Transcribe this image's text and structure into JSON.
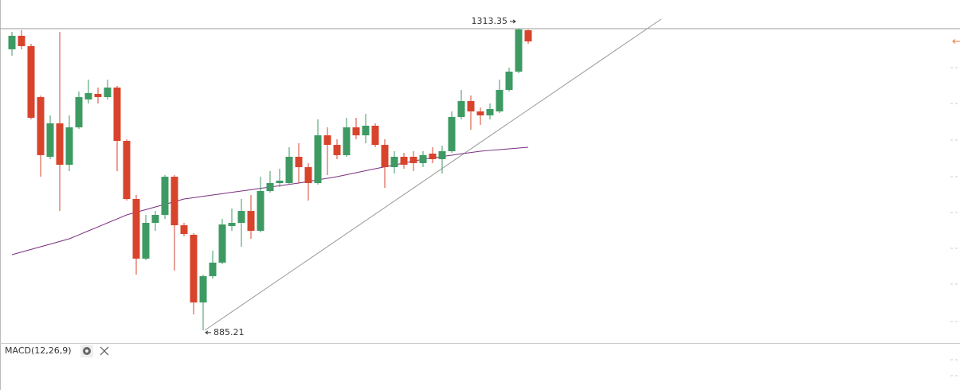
{
  "chart_data": {
    "type": "candlestick",
    "open": [
      1284.0,
      1303.2,
      1288.5,
      1216.1,
      1131.4,
      1178.9,
      1120.1,
      1173.2,
      1212.8,
      1220.7,
      1216.1,
      1229.7,
      1154.0,
      1071.5,
      986.8,
      1037.6,
      1048.9,
      1103.1,
      1034.2,
      1020.7,
      924.6,
      961.9,
      981.1,
      1033.1,
      1037.6,
      1054.5,
      1026.3,
      1082.8,
      1094.1,
      1094.1,
      1131.4,
      1116.7,
      1094.1,
      1161.9,
      1148.3,
      1133.7,
      1173.2,
      1161.9,
      1175.5,
      1148.3,
      1116.7,
      1131.4,
      1131.4,
      1122.4,
      1135.9,
      1128.0,
      1139.3,
      1187.9,
      1210.5,
      1195.8,
      1190.2,
      1195.8,
      1226.3,
      1252.3,
      1311.1
    ],
    "high": [
      1308.8,
      1311.1,
      1291.9,
      1218.4,
      1190.2,
      1308.8,
      1190.2,
      1224.0,
      1241.0,
      1229.7,
      1241.0,
      1232.0,
      1156.3,
      1077.2,
      1048.9,
      1054.5,
      1105.4,
      1105.4,
      1037.6,
      1022.9,
      964.2,
      998.1,
      1043.3,
      1057.9,
      1071.5,
      1077.2,
      1103.1,
      1111.1,
      1114.4,
      1144.9,
      1150.6,
      1122.4,
      1184.5,
      1173.2,
      1156.3,
      1186.8,
      1186.8,
      1192.4,
      1178.9,
      1156.3,
      1139.3,
      1137.0,
      1139.3,
      1139.3,
      1144.9,
      1147.2,
      1195.8,
      1226.3,
      1218.4,
      1201.5,
      1207.1,
      1241.0,
      1258.0,
      1313.35,
      1312.2
    ],
    "low": [
      1274.9,
      1284.0,
      1184.5,
      1103.1,
      1128.0,
      1054.5,
      1111.1,
      1170.9,
      1207.1,
      1207.1,
      1212.8,
      1111.1,
      1069.2,
      964.2,
      984.5,
      1026.3,
      1043.3,
      969.8,
      1018.4,
      907.7,
      885.21,
      958.5,
      978.8,
      1026.3,
      1003.7,
      1015.0,
      1024.0,
      1080.5,
      1088.5,
      1091.8,
      1094.1,
      1069.2,
      1091.8,
      1105.4,
      1128.0,
      1131.4,
      1156.3,
      1150.6,
      1144.9,
      1087.3,
      1107.7,
      1114.4,
      1111.1,
      1116.7,
      1122.4,
      1107.7,
      1137.0,
      1184.5,
      1169.8,
      1176.6,
      1184.5,
      1193.5,
      1224.0,
      1250.0,
      1291.9
    ],
    "close": [
      1303.2,
      1288.5,
      1186.8,
      1133.7,
      1178.9,
      1120.1,
      1173.2,
      1216.1,
      1221.8,
      1216.1,
      1229.7,
      1154.0,
      1071.5,
      986.8,
      1037.6,
      1048.9,
      1103.1,
      1034.2,
      1021.8,
      924.6,
      961.9,
      981.1,
      1035.3,
      1037.6,
      1054.5,
      1026.3,
      1082.8,
      1094.1,
      1097.5,
      1131.4,
      1116.7,
      1094.1,
      1161.9,
      1148.3,
      1133.7,
      1173.2,
      1161.9,
      1175.5,
      1148.3,
      1116.7,
      1131.4,
      1120.1,
      1122.4,
      1133.7,
      1128.0,
      1139.3,
      1187.9,
      1210.5,
      1195.8,
      1190.2,
      1199.2,
      1226.3,
      1252.3,
      1312.2,
      1295.2
    ],
    "up_color": "#3d9a63",
    "down_color": "#d8432c",
    "lines": [
      {
        "color": "#7a2f7f",
        "values": [
          992.4,
          996.2,
          999.9,
          1003.7,
          1007.4,
          1011.2,
          1015.0,
          1020.6,
          1026.3,
          1031.9,
          1037.6,
          1043.2,
          1048.9,
          1052.7,
          1056.4,
          1060.2,
          1063.9,
          1067.7,
          1071.5,
          1073.4,
          1075.3,
          1077.2,
          1079.0,
          1080.9,
          1082.8,
          1084.7,
          1086.6,
          1088.5,
          1090.3,
          1092.2,
          1094.1,
          1096.4,
          1098.7,
          1100.9,
          1103.1,
          1106.0,
          1108.8,
          1111.6,
          1114.4,
          1117.1,
          1119.8,
          1122.5,
          1125.2,
          1128.0,
          1129.9,
          1131.8,
          1133.7,
          1135.6,
          1137.5,
          1139.3,
          1140.5,
          1141.6,
          1142.7,
          1143.8,
          1145.0
        ]
      }
    ],
    "ylim": [
      868.1,
      1354
    ],
    "max_price": 1313.35,
    "max_index": 53,
    "min_price": 885.21,
    "min_index": 20,
    "indicator_label": "MACD(12,26,9)"
  }
}
